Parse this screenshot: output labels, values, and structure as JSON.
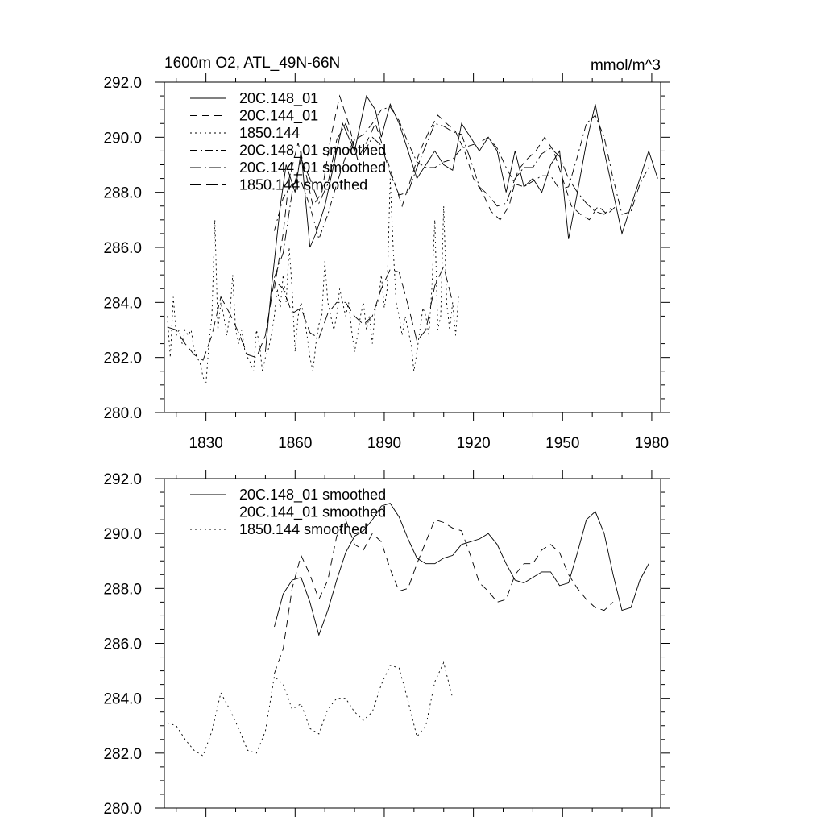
{
  "figure": {
    "title": "1600m O2, ATL_49N-66N",
    "units": "mmol/m^3"
  },
  "chart_data": [
    {
      "type": "line",
      "title": "1600m O2, ATL_49N-66N",
      "units": "mmol/m^3",
      "xlabel": "",
      "ylabel": "",
      "xlim": [
        1816,
        1983
      ],
      "ylim": [
        280,
        292
      ],
      "x_ticks": [
        1830,
        1860,
        1890,
        1920,
        1950,
        1980
      ],
      "y_ticks": [
        "280.0",
        "282.0",
        "284.0",
        "286.0",
        "288.0",
        "290.0",
        "292.0"
      ],
      "show_x_labels": true,
      "legend": "top-left",
      "series": [
        {
          "name": "20C.148_01",
          "dash": "solid",
          "x": [
            1850,
            1852,
            1855,
            1857,
            1860,
            1862,
            1865,
            1867,
            1870,
            1873,
            1876,
            1880,
            1884,
            1887,
            1889,
            1892,
            1895,
            1898,
            1901,
            1904,
            1907,
            1910,
            1913,
            1916,
            1919,
            1922,
            1925,
            1928,
            1931,
            1934,
            1937,
            1940,
            1943,
            1946,
            1949,
            1952,
            1955,
            1958,
            1961,
            1964,
            1967,
            1970,
            1973,
            1976,
            1979,
            1982
          ],
          "y": [
            282.2,
            284.5,
            287.5,
            289.0,
            288.0,
            289.5,
            286.0,
            286.5,
            287.5,
            289.0,
            290.5,
            289.5,
            291.5,
            291.0,
            290.0,
            291.2,
            290.5,
            289.5,
            288.5,
            289.0,
            289.5,
            289.0,
            288.8,
            290.5,
            290.0,
            289.5,
            290.0,
            289.5,
            288.0,
            289.5,
            288.2,
            288.5,
            288.0,
            289.0,
            289.5,
            286.3,
            288.0,
            289.8,
            291.2,
            289.5,
            288.0,
            286.5,
            287.5,
            288.5,
            289.5,
            288.5
          ]
        },
        {
          "name": "20C.144_01",
          "dash": "dash",
          "x": [
            1853,
            1856,
            1858,
            1861,
            1864,
            1866,
            1869,
            1872,
            1875,
            1878,
            1881,
            1884,
            1887,
            1890,
            1893,
            1896,
            1899,
            1902,
            1905,
            1908,
            1911,
            1914,
            1917,
            1920,
            1923,
            1926,
            1929,
            1932,
            1935,
            1938,
            1941,
            1944,
            1947,
            1950,
            1953,
            1956,
            1959,
            1962,
            1965,
            1968
          ],
          "y": [
            284.5,
            286.5,
            288.5,
            289.8,
            288.5,
            287.5,
            288.0,
            290.0,
            291.5,
            290.5,
            289.2,
            289.8,
            290.5,
            289.5,
            288.5,
            287.5,
            288.5,
            289.5,
            290.2,
            290.8,
            290.5,
            290.2,
            289.5,
            288.5,
            288.0,
            287.3,
            287.0,
            287.5,
            288.8,
            289.2,
            289.5,
            290.0,
            289.5,
            288.5,
            287.5,
            287.2,
            287.0,
            287.5,
            287.2,
            287.5
          ]
        },
        {
          "name": "1850.144",
          "dash": "dot",
          "x": [
            1817,
            1818,
            1819,
            1820,
            1821,
            1822,
            1823,
            1824,
            1825,
            1826,
            1827,
            1828,
            1829,
            1830,
            1831,
            1832,
            1833,
            1834,
            1835,
            1836,
            1837,
            1838,
            1839,
            1840,
            1841,
            1842,
            1843,
            1844,
            1845,
            1846,
            1847,
            1848,
            1849,
            1850,
            1851,
            1852,
            1853,
            1854,
            1855,
            1856,
            1857,
            1858,
            1859,
            1860,
            1861,
            1862,
            1863,
            1864,
            1865,
            1866,
            1867,
            1868,
            1869,
            1870,
            1871,
            1872,
            1873,
            1874,
            1875,
            1876,
            1877,
            1878,
            1879,
            1880,
            1881,
            1882,
            1883,
            1884,
            1885,
            1886,
            1887,
            1888,
            1889,
            1890,
            1891,
            1892,
            1893,
            1894,
            1895,
            1896,
            1897,
            1898,
            1899,
            1900,
            1901,
            1902,
            1903,
            1904,
            1905,
            1906,
            1907,
            1908,
            1909,
            1910,
            1911,
            1912,
            1913,
            1914,
            1915
          ],
          "y": [
            283.5,
            282.0,
            284.2,
            282.8,
            283.0,
            282.5,
            283.0,
            282.8,
            283.0,
            282.3,
            282.0,
            281.8,
            281.3,
            281.0,
            282.5,
            283.5,
            287.0,
            283.0,
            284.0,
            283.5,
            282.8,
            283.5,
            285.0,
            283.0,
            282.5,
            283.0,
            282.3,
            282.0,
            281.8,
            281.5,
            283.0,
            282.5,
            281.5,
            282.0,
            282.3,
            282.8,
            283.5,
            284.5,
            283.8,
            285.0,
            284.0,
            286.0,
            284.5,
            282.2,
            283.5,
            284.0,
            283.5,
            282.8,
            282.0,
            281.5,
            282.5,
            283.2,
            283.5,
            285.5,
            284.0,
            283.5,
            283.0,
            283.5,
            284.5,
            284.0,
            283.5,
            284.0,
            283.0,
            282.2,
            282.8,
            283.5,
            284.0,
            283.0,
            283.5,
            282.5,
            283.8,
            284.0,
            285.0,
            283.8,
            284.5,
            288.5,
            286.0,
            284.0,
            283.5,
            282.8,
            283.5,
            283.0,
            282.5,
            281.5,
            282.2,
            283.0,
            283.8,
            283.5,
            282.8,
            284.5,
            287.0,
            283.0,
            283.5,
            287.5,
            284.0,
            283.0,
            284.0,
            282.8,
            284.2
          ]
        },
        {
          "name": "20C.148_01 smoothed",
          "dash": "dashdot",
          "x": [
            1853,
            1856,
            1859,
            1862,
            1865,
            1868,
            1871,
            1874,
            1877,
            1880,
            1883,
            1886,
            1889,
            1892,
            1895,
            1898,
            1901,
            1904,
            1907,
            1910,
            1913,
            1916,
            1919,
            1922,
            1925,
            1928,
            1931,
            1934,
            1937,
            1940,
            1943,
            1946,
            1949,
            1952,
            1955,
            1958,
            1961,
            1964,
            1967,
            1970,
            1973,
            1976,
            1979
          ],
          "y": [
            286.6,
            287.8,
            288.3,
            288.4,
            287.5,
            286.3,
            287.2,
            288.3,
            289.3,
            289.9,
            290.1,
            290.5,
            291.0,
            291.1,
            290.6,
            289.8,
            289.1,
            288.9,
            288.9,
            289.1,
            289.2,
            289.6,
            289.7,
            289.8,
            290.0,
            289.6,
            288.9,
            288.3,
            288.2,
            288.4,
            288.6,
            288.6,
            288.1,
            288.2,
            289.3,
            290.5,
            290.8,
            290.0,
            288.5,
            287.2,
            287.3,
            288.3,
            288.9
          ]
        },
        {
          "name": "20C.144_01 smoothed",
          "dash": "longdashdot",
          "x": [
            1853,
            1856,
            1859,
            1862,
            1865,
            1868,
            1871,
            1874,
            1877,
            1880,
            1883,
            1886,
            1889,
            1892,
            1895,
            1898,
            1901,
            1904,
            1907,
            1910,
            1913,
            1916,
            1919,
            1922,
            1925,
            1928,
            1931,
            1934,
            1937,
            1940,
            1943,
            1946,
            1949,
            1952,
            1955,
            1958,
            1961,
            1964,
            1967
          ],
          "y": [
            284.9,
            285.8,
            288.0,
            289.2,
            288.5,
            287.6,
            288.3,
            289.9,
            290.5,
            289.6,
            289.4,
            290.0,
            289.7,
            288.7,
            287.9,
            288.0,
            288.9,
            289.7,
            290.5,
            290.4,
            290.2,
            290.1,
            289.2,
            288.2,
            287.9,
            287.5,
            287.6,
            288.5,
            288.9,
            288.9,
            289.4,
            289.6,
            289.3,
            288.5,
            288.0,
            287.6,
            287.3,
            287.2,
            287.5
          ]
        },
        {
          "name": "1850.144 smoothed",
          "dash": "longdash",
          "x": [
            1817,
            1820,
            1823,
            1826,
            1829,
            1832,
            1835,
            1838,
            1841,
            1844,
            1847,
            1850,
            1853,
            1856,
            1859,
            1862,
            1865,
            1868,
            1871,
            1874,
            1877,
            1880,
            1883,
            1886,
            1889,
            1892,
            1895,
            1898,
            1901,
            1904,
            1907,
            1910,
            1913
          ],
          "y": [
            283.1,
            283.0,
            282.5,
            282.1,
            281.9,
            282.8,
            284.2,
            283.6,
            282.9,
            282.1,
            282.0,
            282.8,
            284.8,
            284.5,
            283.6,
            283.8,
            282.9,
            282.7,
            283.6,
            284.0,
            284.0,
            283.5,
            283.2,
            283.5,
            284.5,
            285.2,
            285.1,
            283.9,
            282.6,
            283.0,
            284.6,
            285.3,
            284.0
          ]
        }
      ]
    },
    {
      "type": "line",
      "title": "",
      "xlabel": "",
      "ylabel": "",
      "xlim": [
        1816,
        1983
      ],
      "ylim": [
        280,
        292
      ],
      "x_ticks": [
        1830,
        1860,
        1890,
        1920,
        1950,
        1980
      ],
      "y_ticks": [
        "280.0",
        "282.0",
        "284.0",
        "286.0",
        "288.0",
        "290.0",
        "292.0"
      ],
      "show_x_labels": false,
      "legend": "top-left",
      "series": [
        {
          "name": "20C.148_01 smoothed",
          "dash": "solid",
          "x": [
            1853,
            1856,
            1859,
            1862,
            1865,
            1868,
            1871,
            1874,
            1877,
            1880,
            1883,
            1886,
            1889,
            1892,
            1895,
            1898,
            1901,
            1904,
            1907,
            1910,
            1913,
            1916,
            1919,
            1922,
            1925,
            1928,
            1931,
            1934,
            1937,
            1940,
            1943,
            1946,
            1949,
            1952,
            1955,
            1958,
            1961,
            1964,
            1967,
            1970,
            1973,
            1976,
            1979
          ],
          "y": [
            286.6,
            287.8,
            288.3,
            288.4,
            287.5,
            286.3,
            287.2,
            288.3,
            289.3,
            289.9,
            290.1,
            290.5,
            291.0,
            291.1,
            290.6,
            289.8,
            289.1,
            288.9,
            288.9,
            289.1,
            289.2,
            289.6,
            289.7,
            289.8,
            290.0,
            289.6,
            288.9,
            288.3,
            288.2,
            288.4,
            288.6,
            288.6,
            288.1,
            288.2,
            289.3,
            290.5,
            290.8,
            290.0,
            288.5,
            287.2,
            287.3,
            288.3,
            288.9
          ]
        },
        {
          "name": "20C.144_01 smoothed",
          "dash": "dash",
          "x": [
            1853,
            1856,
            1859,
            1862,
            1865,
            1868,
            1871,
            1874,
            1877,
            1880,
            1883,
            1886,
            1889,
            1892,
            1895,
            1898,
            1901,
            1904,
            1907,
            1910,
            1913,
            1916,
            1919,
            1922,
            1925,
            1928,
            1931,
            1934,
            1937,
            1940,
            1943,
            1946,
            1949,
            1952,
            1955,
            1958,
            1961,
            1964,
            1967
          ],
          "y": [
            284.9,
            285.8,
            288.0,
            289.2,
            288.5,
            287.6,
            288.3,
            289.9,
            290.5,
            289.6,
            289.4,
            290.0,
            289.7,
            288.7,
            287.9,
            288.0,
            288.9,
            289.7,
            290.5,
            290.4,
            290.2,
            290.1,
            289.2,
            288.2,
            287.9,
            287.5,
            287.6,
            288.5,
            288.9,
            288.9,
            289.4,
            289.6,
            289.3,
            288.5,
            288.0,
            287.6,
            287.3,
            287.2,
            287.5
          ]
        },
        {
          "name": "1850.144 smoothed",
          "dash": "dot",
          "x": [
            1817,
            1820,
            1823,
            1826,
            1829,
            1832,
            1835,
            1838,
            1841,
            1844,
            1847,
            1850,
            1853,
            1856,
            1859,
            1862,
            1865,
            1868,
            1871,
            1874,
            1877,
            1880,
            1883,
            1886,
            1889,
            1892,
            1895,
            1898,
            1901,
            1904,
            1907,
            1910,
            1913
          ],
          "y": [
            283.1,
            283.0,
            282.5,
            282.1,
            281.9,
            282.8,
            284.2,
            283.6,
            282.9,
            282.1,
            282.0,
            282.8,
            284.8,
            284.5,
            283.6,
            283.8,
            282.9,
            282.7,
            283.6,
            284.0,
            284.0,
            283.5,
            283.2,
            283.5,
            284.5,
            285.2,
            285.1,
            283.9,
            282.6,
            283.0,
            284.6,
            285.3,
            284.0
          ]
        }
      ]
    }
  ]
}
